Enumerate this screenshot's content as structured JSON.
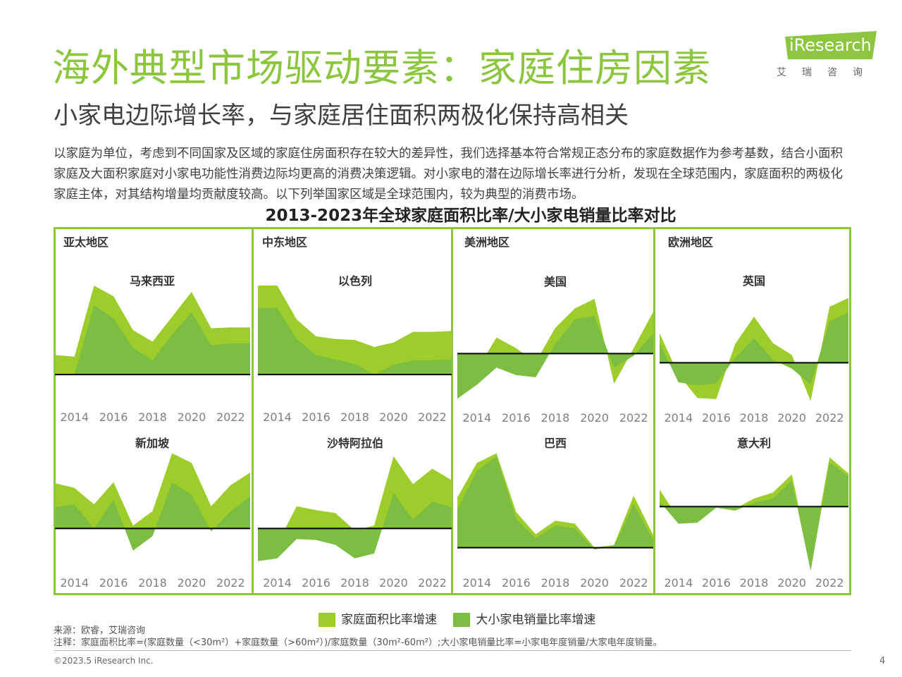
{
  "header": {
    "title": "海外典型市场驱动要素：家庭住房因素",
    "subtitle": "小家电边际增长率，与家庭居住面积两极化保持高相关",
    "logo_text": "iResearch",
    "logo_cn": "艾瑞咨询"
  },
  "intro": {
    "text": "以家庭为单位，考虑到不同国家及区域的家庭住房面积存在较大的差异性，我们选择基本符合常规正态分布的家庭数据作为参考基数，结合小面积家庭及大面积家庭对小家电功能性消费边际均更高的消费决策逻辑。对小家电的潜在边际增长率进行分析，发现在全球范围内，家庭面积的两极化家庭主体，对其结构增量均贡献度较高。以下列举国家区域是全球范围内，较为典型的消费市场。"
  },
  "chart_section": {
    "title": "2013-2023年全球家庭面积比率/大小家电销量比率对比",
    "regions": [
      "亚太地区",
      "中东地区",
      "美洲地区",
      "欧洲地区"
    ]
  },
  "colors": {
    "accent": "#8cc63f",
    "light_area": "#9ccd2a",
    "dark_area": "#7cbd42",
    "baseline": "#000000",
    "tick": "#7f7f7f"
  },
  "legend": {
    "items": [
      {
        "label": "家庭面积比率增速",
        "color": "#9ccd2a"
      },
      {
        "label": "大小家电销量比率增速",
        "color": "#7cbd42"
      }
    ]
  },
  "footer": {
    "source": "来源：欧睿，艾瑞咨询",
    "note": "注释：家庭面积比率=(家庭数量（<30m²）+家庭数量（>60m²）)/家庭数量（30m²-60m²）;大小家电销量比率=小家电年度销量/大家电年度销量。",
    "copyright": "©2023.5 iResearch Inc.",
    "page": "4"
  },
  "chart_data": [
    {
      "type": "area",
      "region": "亚太地区",
      "title": "马来西亚",
      "x": [
        2013,
        2014,
        2015,
        2016,
        2017,
        2018,
        2019,
        2020,
        2021,
        2022,
        2023
      ],
      "x_tick_labels": [
        "2014",
        "2016",
        "2018",
        "2020",
        "2022"
      ],
      "ylim": [
        -30,
        100
      ],
      "baseline": 0,
      "series": [
        {
          "name": "家庭面积比率增速",
          "values": [
            22,
            20,
            100,
            88,
            50,
            37,
            65,
            93,
            52,
            53,
            53
          ]
        },
        {
          "name": "大小家电销量比率增速",
          "values": [
            0,
            0,
            78,
            63,
            30,
            16,
            45,
            70,
            33,
            35,
            35
          ]
        }
      ]
    },
    {
      "type": "area",
      "region": "中东地区",
      "title": "以色列",
      "x": [
        2013,
        2014,
        2015,
        2016,
        2017,
        2018,
        2019,
        2020,
        2021,
        2022,
        2023
      ],
      "x_tick_labels": [
        "2014",
        "2016",
        "2018",
        "2020",
        "2022"
      ],
      "ylim": [
        -30,
        100
      ],
      "baseline": 0,
      "series": [
        {
          "name": "家庭面积比率增速",
          "values": [
            100,
            100,
            62,
            43,
            40,
            39,
            31,
            36,
            48,
            48,
            49
          ]
        },
        {
          "name": "大小家电销量比率增速",
          "values": [
            75,
            75,
            40,
            22,
            17,
            12,
            0,
            11,
            16,
            16,
            17
          ]
        }
      ]
    },
    {
      "type": "area",
      "region": "美洲地区",
      "title": "美国",
      "x": [
        2013,
        2014,
        2015,
        2016,
        2017,
        2018,
        2019,
        2020,
        2021,
        2022,
        2023
      ],
      "x_tick_labels": [
        "2014",
        "2016",
        "2018",
        "2020",
        "2022"
      ],
      "ylim": [
        -45,
        60
      ],
      "baseline": 0,
      "series": [
        {
          "name": "家庭面积比率增速",
          "values": [
            -22,
            -15,
            15,
            5,
            -8,
            24,
            42,
            51,
            -28,
            5,
            39
          ]
        },
        {
          "name": "大小家电销量比率增速",
          "values": [
            -42,
            -29,
            -13,
            -20,
            -22,
            9,
            32,
            35,
            -13,
            -2,
            19
          ]
        }
      ]
    },
    {
      "type": "area",
      "region": "欧洲地区",
      "title": "英国",
      "x": [
        2013,
        2014,
        2015,
        2016,
        2017,
        2018,
        2019,
        2020,
        2021,
        2022,
        2023
      ],
      "x_tick_labels": [
        "2014",
        "2016",
        "2018",
        "2020",
        "2022"
      ],
      "ylim": [
        -40,
        75
      ],
      "baseline": 0,
      "series": [
        {
          "name": "家庭面积比率增速",
          "values": [
            30,
            -12,
            -36,
            -37,
            19,
            47,
            20,
            8,
            -39,
            57,
            66
          ]
        },
        {
          "name": "大小家电销量比率增速",
          "values": [
            20,
            -20,
            -23,
            -21,
            5,
            25,
            3,
            -6,
            -22,
            42,
            51
          ]
        }
      ]
    },
    {
      "type": "area",
      "region": "亚太地区",
      "title": "新加坡",
      "x": [
        2013,
        2014,
        2015,
        2016,
        2017,
        2018,
        2019,
        2020,
        2021,
        2022,
        2023
      ],
      "x_tick_labels": [
        "2014",
        "2016",
        "2018",
        "2020",
        "2022"
      ],
      "ylim": [
        -40,
        80
      ],
      "baseline": 0,
      "series": [
        {
          "name": "家庭面积比率增速",
          "values": [
            47,
            42,
            25,
            48,
            3,
            18,
            78,
            68,
            23,
            45,
            58
          ]
        },
        {
          "name": "大小家电销量比率增速",
          "values": [
            22,
            25,
            0,
            30,
            -23,
            -8,
            48,
            35,
            -3,
            18,
            33
          ]
        }
      ]
    },
    {
      "type": "area",
      "region": "中东地区",
      "title": "沙特阿拉伯",
      "x": [
        2013,
        2014,
        2015,
        2016,
        2017,
        2018,
        2019,
        2020,
        2021,
        2022,
        2023
      ],
      "x_tick_labels": [
        "2014",
        "2016",
        "2018",
        "2020",
        "2022"
      ],
      "ylim": [
        -40,
        80
      ],
      "baseline": 0,
      "series": [
        {
          "name": "家庭面积比率增速",
          "values": [
            -14,
            -16,
            23,
            19,
            16,
            -2,
            3,
            75,
            46,
            62,
            50
          ]
        },
        {
          "name": "大小家电销量比率增速",
          "values": [
            -34,
            -31,
            -11,
            -12,
            -17,
            -31,
            -26,
            37,
            9,
            28,
            22
          ]
        }
      ]
    },
    {
      "type": "area",
      "region": "美洲地区",
      "title": "巴西",
      "x": [
        2013,
        2014,
        2015,
        2016,
        2017,
        2018,
        2019,
        2020,
        2021,
        2022,
        2023
      ],
      "x_tick_labels": [
        "2014",
        "2016",
        "2018",
        "2020",
        "2022"
      ],
      "ylim": [
        -20,
        100
      ],
      "baseline": 0,
      "series": [
        {
          "name": "家庭面积比率增速",
          "values": [
            52,
            88,
            98,
            37,
            14,
            28,
            25,
            0,
            3,
            54,
            13
          ]
        },
        {
          "name": "大小家电销量比率增速",
          "values": [
            40,
            80,
            95,
            30,
            10,
            23,
            20,
            -2,
            2,
            45,
            8
          ]
        }
      ]
    },
    {
      "type": "area",
      "region": "欧洲地区",
      "title": "意大利",
      "x": [
        2013,
        2014,
        2015,
        2016,
        2017,
        2018,
        2019,
        2020,
        2021,
        2022,
        2023
      ],
      "x_tick_labels": [
        "2014",
        "2016",
        "2018",
        "2020",
        "2022"
      ],
      "ylim": [
        -60,
        55
      ],
      "baseline": 0,
      "series": [
        {
          "name": "家庭面积比率增速",
          "values": [
            17,
            -12,
            -10,
            1,
            -2,
            8,
            14,
            32,
            -55,
            49,
            33
          ]
        },
        {
          "name": "大小家电销量比率增速",
          "values": [
            5,
            -17,
            -16,
            -1,
            -4,
            4,
            8,
            26,
            -64,
            44,
            30
          ]
        }
      ]
    }
  ]
}
